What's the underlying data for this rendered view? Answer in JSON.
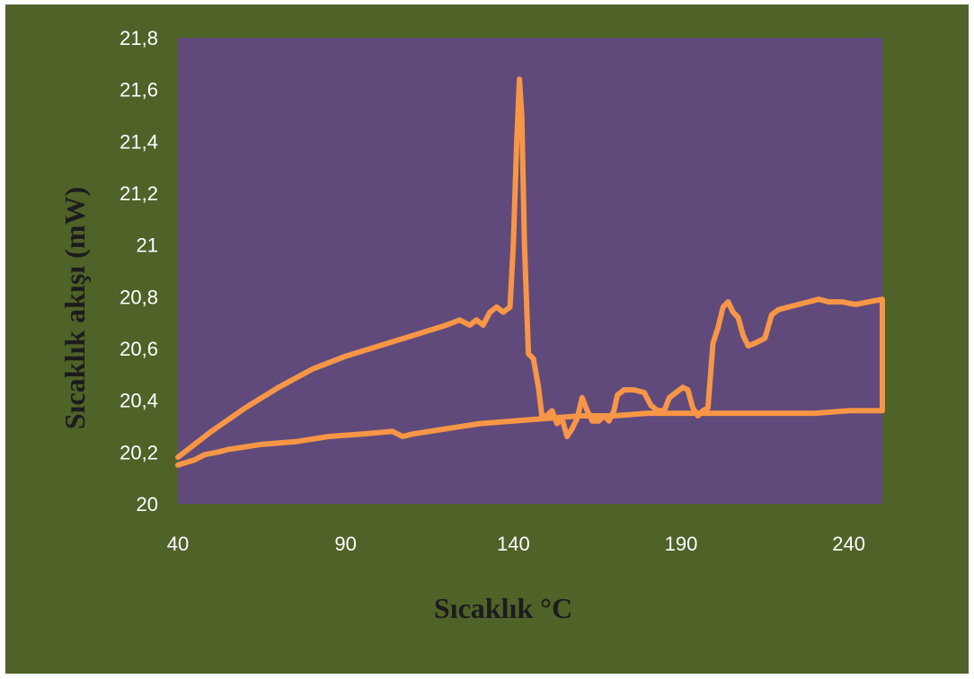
{
  "chart_data": {
    "type": "line",
    "title": "",
    "xlabel": "Sıcaklık °C",
    "ylabel": "Sıcaklık  akışı (mW)",
    "xlim": [
      40,
      250
    ],
    "ylim": [
      20,
      21.8
    ],
    "x_ticks": [
      40,
      90,
      140,
      190,
      240
    ],
    "x_tick_labels": [
      "40",
      "90",
      "140",
      "190",
      "240"
    ],
    "y_ticks": [
      20,
      20.2,
      20.4,
      20.6,
      20.8,
      21,
      21.2,
      21.4,
      21.6,
      21.8
    ],
    "y_tick_labels": [
      "20",
      "20,2",
      "20,4",
      "20,6",
      "20,8",
      "21",
      "21,2",
      "21,4",
      "21,6",
      "21,8"
    ],
    "grid": false,
    "legend": "none",
    "colors": {
      "frame": "#4f6228",
      "plot_area": "#604a7b",
      "line": "#f79646",
      "tick_text": "#ffffff",
      "axis_title": "#1c1c1c"
    },
    "series": [
      {
        "values": [
          [
            40,
            20.18
          ],
          [
            50,
            20.28
          ],
          [
            60,
            20.37
          ],
          [
            70,
            20.45
          ],
          [
            80,
            20.52
          ],
          [
            90,
            20.57
          ],
          [
            100,
            20.61
          ],
          [
            110,
            20.65
          ],
          [
            120,
            20.69
          ],
          [
            124,
            20.71
          ],
          [
            127,
            20.69
          ],
          [
            129,
            20.71
          ],
          [
            131,
            20.69
          ],
          [
            133,
            20.74
          ],
          [
            135,
            20.76
          ],
          [
            137,
            20.74
          ],
          [
            139,
            20.76
          ],
          [
            140,
            21.0
          ],
          [
            141,
            21.4
          ],
          [
            141.8,
            21.64
          ],
          [
            142.5,
            21.5
          ],
          [
            143.3,
            21.0
          ],
          [
            144.5,
            20.58
          ],
          [
            146,
            20.56
          ],
          [
            147.5,
            20.45
          ],
          [
            148.5,
            20.34
          ],
          [
            150,
            20.34
          ],
          [
            151.5,
            20.36
          ],
          [
            153,
            20.31
          ],
          [
            154.5,
            20.33
          ],
          [
            156,
            20.26
          ],
          [
            157.5,
            20.29
          ],
          [
            159,
            20.33
          ],
          [
            160.5,
            20.41
          ],
          [
            162,
            20.36
          ],
          [
            163.5,
            20.32
          ],
          [
            165.5,
            20.32
          ],
          [
            167,
            20.34
          ],
          [
            168.5,
            20.32
          ],
          [
            170,
            20.36
          ],
          [
            171,
            20.42
          ],
          [
            173,
            20.44
          ],
          [
            176,
            20.44
          ],
          [
            179,
            20.43
          ],
          [
            181,
            20.38
          ],
          [
            183,
            20.36
          ],
          [
            185,
            20.36
          ],
          [
            186.5,
            20.41
          ],
          [
            188.5,
            20.43
          ],
          [
            190.5,
            20.45
          ],
          [
            192,
            20.44
          ],
          [
            193.5,
            20.37
          ],
          [
            195,
            20.34
          ],
          [
            196.5,
            20.36
          ],
          [
            198,
            20.37
          ],
          [
            199.5,
            20.62
          ],
          [
            201,
            20.68
          ],
          [
            202.5,
            20.76
          ],
          [
            204,
            20.78
          ],
          [
            205.5,
            20.74
          ],
          [
            207,
            20.72
          ],
          [
            208.5,
            20.65
          ],
          [
            210,
            20.61
          ],
          [
            212,
            20.62
          ],
          [
            215,
            20.64
          ],
          [
            217,
            20.73
          ],
          [
            219,
            20.75
          ],
          [
            222,
            20.76
          ],
          [
            225,
            20.77
          ],
          [
            228,
            20.78
          ],
          [
            231,
            20.79
          ],
          [
            234,
            20.78
          ],
          [
            238,
            20.78
          ],
          [
            242,
            20.77
          ],
          [
            246,
            20.78
          ],
          [
            250,
            20.79
          ],
          [
            250,
            20.36
          ],
          [
            245,
            20.36
          ],
          [
            240,
            20.36
          ],
          [
            230,
            20.35
          ],
          [
            220,
            20.35
          ],
          [
            210,
            20.35
          ],
          [
            200,
            20.35
          ],
          [
            190,
            20.35
          ],
          [
            180,
            20.35
          ],
          [
            170,
            20.34
          ],
          [
            160,
            20.34
          ],
          [
            150,
            20.33
          ],
          [
            140,
            20.32
          ],
          [
            130,
            20.31
          ],
          [
            120,
            20.29
          ],
          [
            110,
            20.27
          ],
          [
            107,
            20.26
          ],
          [
            104,
            20.28
          ],
          [
            95,
            20.27
          ],
          [
            85,
            20.26
          ],
          [
            75,
            20.24
          ],
          [
            65,
            20.23
          ],
          [
            60,
            20.22
          ],
          [
            55,
            20.21
          ],
          [
            52,
            20.2
          ],
          [
            48,
            20.19
          ],
          [
            45,
            20.17
          ],
          [
            40,
            20.15
          ]
        ]
      }
    ]
  }
}
